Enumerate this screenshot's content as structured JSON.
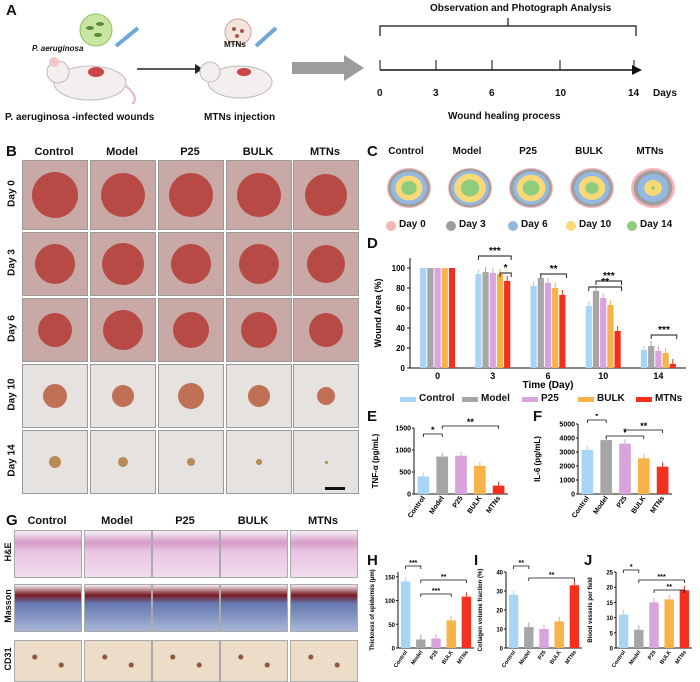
{
  "panel_labels": {
    "A": "A",
    "B": "B",
    "C": "C",
    "D": "D",
    "E": "E",
    "F": "F",
    "G": "G",
    "H": "H",
    "I": "I",
    "J": "J"
  },
  "panelA": {
    "bacteria_label": "P. aeruginosa",
    "mtn_label": "MTNs",
    "caption_left": "P. aeruginosa -infected wounds",
    "caption_right": "MTNs injection",
    "timeline_title": "Observation and Photograph Analysis",
    "timeline_ticks": [
      "0",
      "3",
      "6",
      "10",
      "14"
    ],
    "timeline_unit": "Days",
    "timeline_caption": "Wound healing process"
  },
  "groups": [
    "Control",
    "Model",
    "P25",
    "BULK",
    "MTNs"
  ],
  "days": [
    "Day 0",
    "Day 3",
    "Day 6",
    "Day 10",
    "Day 14"
  ],
  "panelC": {
    "legend": [
      "Day 0",
      "Day 3",
      "Day 6",
      "Day 10",
      "Day 14"
    ]
  },
  "colors": {
    "control": "#a8d4f5",
    "model": "#a6a6a6",
    "p25": "#d9a3de",
    "bulk": "#f8b24a",
    "mtns": "#f2301d",
    "day0": "#f7b5b5",
    "day3": "#9e9e9e",
    "day6": "#93b9e3",
    "day10": "#f7d978",
    "day14": "#8fcd7c"
  },
  "chart_data": [
    {
      "id": "D",
      "type": "bar",
      "ylabel": "Wound Area  (%)",
      "xlabel": "Time  (Day)",
      "categories": [
        "0",
        "3",
        "6",
        "10",
        "14"
      ],
      "yticks": [
        "0",
        "20",
        "40",
        "60",
        "80",
        "100"
      ],
      "ylim": [
        0,
        110
      ],
      "series": [
        {
          "name": "Control",
          "values": [
            100,
            94,
            82,
            62,
            18
          ]
        },
        {
          "name": "Model",
          "values": [
            100,
            96,
            90,
            77,
            22
          ]
        },
        {
          "name": "P25",
          "values": [
            100,
            95,
            85,
            70,
            17
          ]
        },
        {
          "name": "BULK",
          "values": [
            100,
            94,
            80,
            63,
            15
          ]
        },
        {
          "name": "MTNs",
          "values": [
            100,
            87,
            73,
            37,
            4
          ]
        }
      ],
      "significance": [
        "***",
        "*",
        "**",
        "**",
        "***",
        "***"
      ]
    },
    {
      "id": "E",
      "type": "bar",
      "ylabel": "TNF-α (pg/mL)",
      "categories": [
        "Control",
        "Model",
        "P25",
        "BULK",
        "MTNs"
      ],
      "yticks": [
        "0",
        "500",
        "1000",
        "1500"
      ],
      "ylim": [
        0,
        1500
      ],
      "values": [
        400,
        850,
        870,
        640,
        190
      ],
      "significance": [
        "*",
        "**"
      ]
    },
    {
      "id": "F",
      "type": "bar",
      "ylabel": "IL-6  (pg/mL)",
      "categories": [
        "Control",
        "Model",
        "P25",
        "BULK",
        "MTNs"
      ],
      "yticks": [
        "0",
        "1000",
        "2000",
        "3000",
        "4000",
        "5000"
      ],
      "ylim": [
        0,
        5000
      ],
      "values": [
        3150,
        3850,
        3600,
        2550,
        1950
      ],
      "significance": [
        "*",
        "*",
        "**"
      ]
    },
    {
      "id": "H",
      "type": "bar",
      "ylabel": "Thickness of epidermis (μm)",
      "categories": [
        "Control",
        "Model",
        "P25",
        "BULK",
        "MTNs"
      ],
      "yticks": [
        "0",
        "50",
        "100",
        "150"
      ],
      "ylim": [
        0,
        160
      ],
      "values": [
        140,
        18,
        20,
        58,
        108
      ],
      "significance": [
        "***",
        "**",
        "***"
      ]
    },
    {
      "id": "I",
      "type": "bar",
      "ylabel": "Collagen volume fraction  (%)",
      "categories": [
        "Control",
        "Model",
        "P25",
        "BULK",
        "MTNs"
      ],
      "yticks": [
        "0",
        "10",
        "20",
        "30",
        "40"
      ],
      "ylim": [
        0,
        40
      ],
      "values": [
        28,
        11,
        10,
        14,
        33
      ],
      "significance": [
        "**",
        "**"
      ]
    },
    {
      "id": "J",
      "type": "bar",
      "ylabel": "Blood vessels per field",
      "categories": [
        "Control",
        "Model",
        "P25",
        "BULK",
        "MTNs"
      ],
      "yticks": [
        "0",
        "5",
        "10",
        "15",
        "20",
        "25"
      ],
      "ylim": [
        0,
        25
      ],
      "values": [
        11,
        6,
        15,
        16,
        19
      ],
      "significance": [
        "*",
        "***",
        "**"
      ]
    }
  ],
  "legendDE": [
    "Control",
    "Model",
    "P25",
    "BULK",
    "MTNs"
  ],
  "stains": [
    "H&E",
    "Masson",
    "CD31"
  ]
}
